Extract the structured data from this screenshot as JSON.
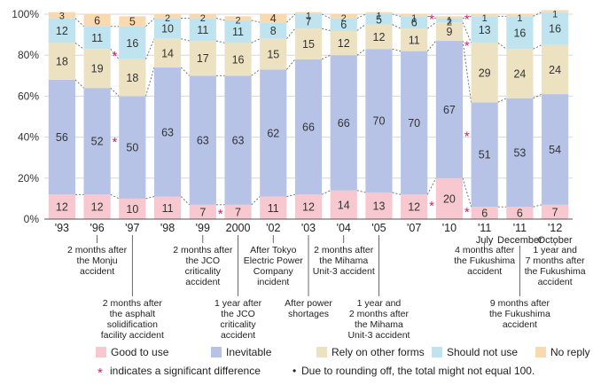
{
  "chart_data": {
    "type": "bar",
    "stacked": true,
    "orientation": "vertical",
    "ylim": [
      0,
      100
    ],
    "y_unit": "%",
    "y_ticks": [
      "0%",
      "20%",
      "40%",
      "60%",
      "80%",
      "100%"
    ],
    "categories": [
      "'93",
      "'96",
      "'97",
      "'98",
      "'99",
      "2000",
      "'02",
      "'03",
      "'04",
      "'05",
      "'07",
      "'10",
      "'11",
      "'11",
      "'12"
    ],
    "category_sublabels": [
      "",
      "",
      "",
      "",
      "",
      "",
      "",
      "",
      "",
      "",
      "",
      "",
      "July",
      "December",
      "October"
    ],
    "series": [
      {
        "name": "Good to use",
        "color": "#f7c8cf",
        "values": [
          12,
          12,
          10,
          11,
          7,
          7,
          11,
          12,
          14,
          13,
          12,
          20,
          6,
          6,
          7
        ]
      },
      {
        "name": "Inevitable",
        "color": "#b6c3e6",
        "values": [
          56,
          52,
          50,
          63,
          63,
          63,
          62,
          66,
          66,
          70,
          70,
          67,
          51,
          53,
          54
        ]
      },
      {
        "name": "Rely on other forms",
        "color": "#ece2c2",
        "values": [
          18,
          19,
          18,
          14,
          17,
          16,
          15,
          15,
          12,
          12,
          11,
          9,
          29,
          24,
          24
        ]
      },
      {
        "name": "Should not use",
        "color": "#bfe4ef",
        "values": [
          12,
          11,
          16,
          10,
          11,
          11,
          8,
          7,
          6,
          5,
          6,
          2,
          13,
          16,
          16
        ]
      },
      {
        "name": "No reply",
        "color": "#f8d9b0",
        "values": [
          3,
          6,
          5,
          2,
          2,
          2,
          4,
          1,
          2,
          1,
          1,
          1,
          1,
          1,
          1
        ]
      }
    ],
    "significance_marker": "*",
    "significance_color": "#d0206a",
    "significance_marks": [
      {
        "category_index": 2,
        "value": 80
      },
      {
        "category_index": 2,
        "value": 38
      },
      {
        "category_index": 5,
        "value": 3
      },
      {
        "category_index": 11,
        "value": 7
      },
      {
        "category_index": 11,
        "value": 98
      },
      {
        "category_index": 12,
        "value": 98
      },
      {
        "category_index": 12,
        "value": 85
      },
      {
        "category_index": 12,
        "value": 41
      },
      {
        "category_index": 12,
        "value": 4
      }
    ],
    "events": [
      {
        "category_index": 1,
        "row": 0,
        "lines": [
          "2 months after",
          "the Monju",
          "accident"
        ]
      },
      {
        "category_index": 2,
        "row": 1,
        "lines": [
          "2 months after",
          "the asphalt",
          "solidification",
          "facility accident"
        ]
      },
      {
        "category_index": 4,
        "row": 0,
        "lines": [
          "2 months after",
          "the JCO",
          "criticality",
          "accident"
        ]
      },
      {
        "category_index": 5,
        "row": 1,
        "lines": [
          "1 year after",
          "the JCO",
          "criticality",
          "accident"
        ]
      },
      {
        "category_index": 6,
        "row": 0,
        "lines": [
          "After Tokyo",
          "Electric Power",
          "Company",
          "incident"
        ]
      },
      {
        "category_index": 7,
        "row": 1,
        "lines": [
          "After power",
          "shortages"
        ]
      },
      {
        "category_index": 8,
        "row": 0,
        "lines": [
          "2 months after",
          "the Mihama",
          "Unit-3 accident"
        ]
      },
      {
        "category_index": 9,
        "row": 1,
        "lines": [
          "1 year and",
          "2 months after",
          "the Mihama",
          "Unit-3 accident"
        ]
      },
      {
        "category_index": 12,
        "row": 0,
        "lines": [
          "4 months after",
          "the Fukushima",
          "accident"
        ]
      },
      {
        "category_index": 13,
        "row": 1,
        "lines": [
          "9 months after",
          "the Fukushima",
          "accident"
        ]
      },
      {
        "category_index": 14,
        "row": 0,
        "lines": [
          "1 year and",
          "7 months after",
          "the Fukushima",
          "accident"
        ]
      }
    ],
    "legend_position": "bottom",
    "notes": [
      {
        "marker": "*",
        "text": "indicates a significant difference"
      },
      {
        "marker": "•",
        "text": "Due to rounding off, the total might not equal 100."
      }
    ]
  }
}
